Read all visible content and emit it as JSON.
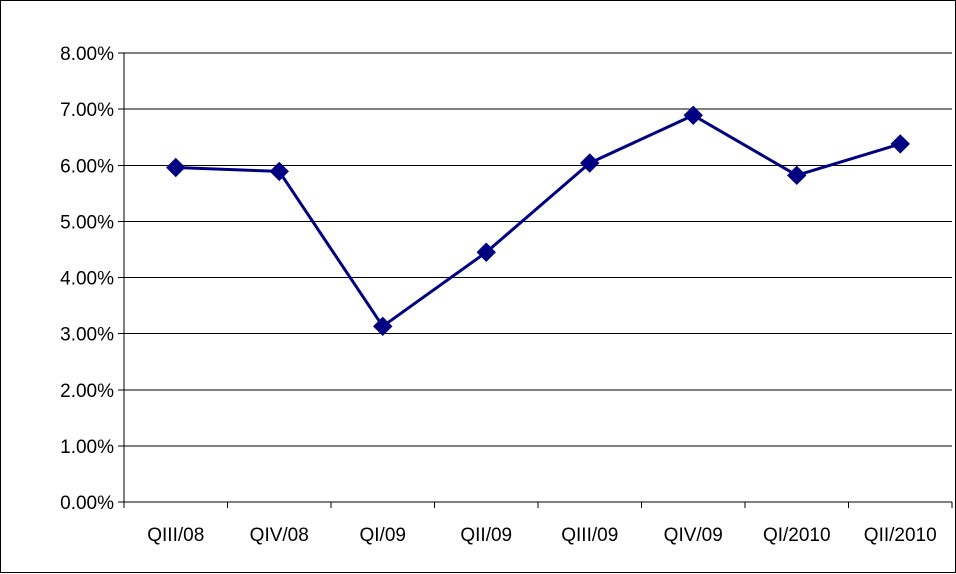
{
  "chart_data": {
    "type": "line",
    "categories": [
      "QIII/08",
      "QIV/08",
      "QI/09",
      "QII/09",
      "QIII/09",
      "QIV/09",
      "QI/2010",
      "QII/2010"
    ],
    "series": [
      {
        "values": [
          5.96,
          5.89,
          3.13,
          4.45,
          6.04,
          6.89,
          5.82,
          6.38
        ],
        "color": "#000080",
        "marker": "diamond"
      }
    ],
    "y_tick_labels": [
      "0.00%",
      "1.00%",
      "2.00%",
      "3.00%",
      "4.00%",
      "5.00%",
      "6.00%",
      "7.00%",
      "8.00%"
    ],
    "ylim": [
      0,
      8
    ],
    "y_step": 1,
    "grid": true,
    "legend": "none"
  }
}
